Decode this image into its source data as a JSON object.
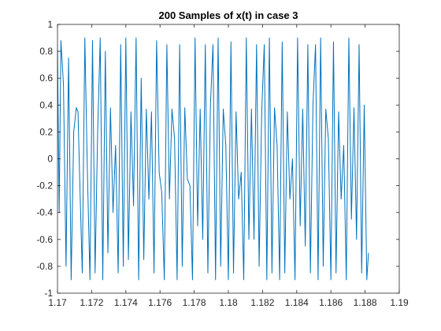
{
  "chart_data": {
    "type": "line",
    "title": "200 Samples of x(t) in case 3",
    "xlabel": "",
    "ylabel": "",
    "xlim": [
      1.17,
      1.19
    ],
    "ylim": [
      -1,
      1
    ],
    "x_ticks": [
      1.17,
      1.172,
      1.174,
      1.176,
      1.178,
      1.18,
      1.182,
      1.184,
      1.186,
      1.188,
      1.19
    ],
    "x_tick_labels": [
      "1.17",
      "1.172",
      "1.174",
      "1.176",
      "1.178",
      "1.18",
      "1.182",
      "1.184",
      "1.186",
      "1.188",
      "1.19"
    ],
    "y_ticks": [
      -1,
      -0.8,
      -0.6,
      -0.4,
      -0.2,
      0,
      0.2,
      0.4,
      0.6,
      0.8,
      1
    ],
    "y_tick_labels": [
      "-1",
      "-0.8",
      "-0.6",
      "-0.4",
      "-0.2",
      "0",
      "0.2",
      "0.4",
      "0.6",
      "0.8",
      "1"
    ],
    "grid": false,
    "series_color": "#0072BD",
    "series": [
      {
        "name": "",
        "x": [
          1.17,
          1.1701,
          1.1702,
          1.17035,
          1.1705,
          1.17065,
          1.1708,
          1.17095,
          1.1711,
          1.1712,
          1.1713,
          1.17145,
          1.1716,
          1.17175,
          1.1719,
          1.17205,
          1.1722,
          1.17235,
          1.1725,
          1.17265,
          1.1728,
          1.17295,
          1.1731,
          1.17325,
          1.1734,
          1.17355,
          1.1737,
          1.17385,
          1.174,
          1.17415,
          1.1743,
          1.17445,
          1.1746,
          1.17475,
          1.1749,
          1.17505,
          1.1752,
          1.17535,
          1.1755,
          1.17565,
          1.1758,
          1.17595,
          1.1761,
          1.17625,
          1.1764,
          1.17655,
          1.1767,
          1.17685,
          1.177,
          1.17715,
          1.1773,
          1.17745,
          1.1776,
          1.17775,
          1.1779,
          1.17805,
          1.1782,
          1.17835,
          1.1785,
          1.17865,
          1.1788,
          1.17895,
          1.1791,
          1.17925,
          1.1794,
          1.17955,
          1.1797,
          1.17985,
          1.18,
          1.18015,
          1.1803,
          1.18045,
          1.1806,
          1.18075,
          1.1809,
          1.18105,
          1.1812,
          1.18135,
          1.1815,
          1.18165,
          1.1818,
          1.18195,
          1.1821,
          1.18225,
          1.1824,
          1.18255,
          1.1827,
          1.18285,
          1.183,
          1.18315,
          1.1833,
          1.18345,
          1.1836,
          1.18375,
          1.1839,
          1.18405,
          1.1842,
          1.18435,
          1.1845,
          1.18465,
          1.1848,
          1.18495,
          1.1851,
          1.18525,
          1.1854,
          1.18555,
          1.1857,
          1.18585,
          1.186,
          1.18615,
          1.1863,
          1.18645,
          1.1866,
          1.18675,
          1.1869,
          1.18705,
          1.1872,
          1.18735,
          1.1875,
          1.18765,
          1.1878,
          1.18795,
          1.1881,
          1.1882
        ],
        "y": [
          0.82,
          -0.4,
          0.88,
          0.55,
          -0.8,
          0.75,
          -0.9,
          0.2,
          0.38,
          0.35,
          -0.15,
          -0.85,
          0.9,
          -0.1,
          -0.9,
          0.88,
          -0.85,
          0.2,
          0.9,
          -0.9,
          0.8,
          -0.7,
          0.38,
          -0.4,
          0.1,
          -0.85,
          0.85,
          -0.8,
          0.9,
          -0.75,
          0.35,
          -0.35,
          0.9,
          -0.9,
          0.6,
          -0.75,
          0.37,
          -0.3,
          0.35,
          -0.85,
          0.88,
          -0.1,
          -0.25,
          -0.9,
          0.85,
          -0.3,
          0.37,
          0.15,
          -0.9,
          0.85,
          -0.8,
          0.38,
          -0.15,
          -0.2,
          -0.9,
          0.9,
          -0.5,
          0.37,
          -0.6,
          0.85,
          -0.85,
          0.4,
          0.85,
          -0.9,
          0.9,
          -0.8,
          0.37,
          0.1,
          -0.9,
          0.87,
          -0.85,
          0.35,
          -0.3,
          -0.1,
          -0.9,
          0.9,
          -0.6,
          0.37,
          -0.6,
          0.85,
          -0.8,
          0.35,
          0.85,
          -0.9,
          0.9,
          -0.85,
          0.38,
          0.1,
          -0.9,
          0.87,
          -0.85,
          0.35,
          -0.3,
          0.0,
          -0.9,
          0.9,
          -0.5,
          0.37,
          -0.65,
          0.85,
          -0.85,
          0.4,
          0.85,
          -0.9,
          0.9,
          -0.8,
          0.37,
          0.15,
          -0.9,
          0.87,
          -0.85,
          0.35,
          -0.3,
          0.1,
          -0.9,
          0.9,
          -0.45,
          0.38,
          -0.6,
          0.85,
          -0.85,
          0.4,
          -0.9,
          -0.7
        ]
      }
    ]
  }
}
